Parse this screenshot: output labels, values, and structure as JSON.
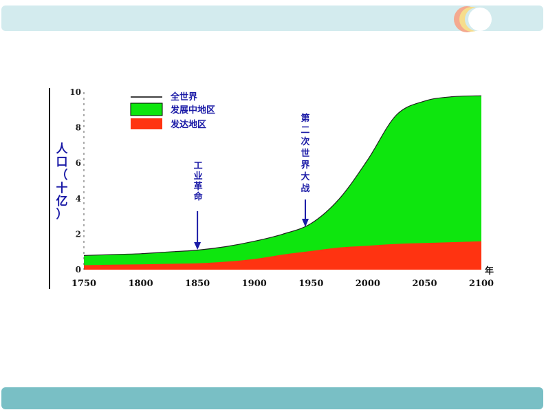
{
  "theme": {
    "top_bar_color": "#d3ebee",
    "bottom_bar_color": "#79bfc5",
    "deco_colors": [
      "#f4a98f",
      "#f6dd8c",
      "#ffffff"
    ]
  },
  "chart_data": {
    "type": "area",
    "title": "",
    "xlabel": "年",
    "ylabel": "人口（十亿）",
    "xlim": [
      1750,
      2100
    ],
    "ylim": [
      0,
      10
    ],
    "x_ticks": [
      "1750",
      "1800",
      "1850",
      "1900",
      "1950",
      "2000",
      "2050",
      "2100"
    ],
    "y_ticks": [
      "0",
      "2",
      "4",
      "6",
      "8",
      "10"
    ],
    "legend_position": "top-left",
    "x": [
      1750,
      1775,
      1800,
      1825,
      1850,
      1875,
      1900,
      1925,
      1950,
      1975,
      2000,
      2025,
      2050,
      2075,
      2100
    ],
    "series": [
      {
        "name": "全世界",
        "kind": "line",
        "color": "#000000",
        "values": [
          0.8,
          0.85,
          0.9,
          1.0,
          1.1,
          1.3,
          1.6,
          2.0,
          2.6,
          4.0,
          6.2,
          8.7,
          9.5,
          9.75,
          9.8
        ]
      },
      {
        "name": "发展中地区",
        "kind": "filled-area",
        "color": "#0ee60e",
        "values": [
          0.8,
          0.85,
          0.9,
          1.0,
          1.1,
          1.3,
          1.6,
          2.0,
          2.6,
          4.0,
          6.2,
          8.7,
          9.5,
          9.75,
          9.8
        ]
      },
      {
        "name": "发达地区",
        "kind": "filled-area",
        "color": "#ff3311",
        "values": [
          0.25,
          0.28,
          0.3,
          0.33,
          0.36,
          0.45,
          0.6,
          0.85,
          1.05,
          1.25,
          1.35,
          1.45,
          1.5,
          1.55,
          1.6
        ]
      }
    ],
    "annotations": [
      {
        "text": "工业革命",
        "x": 1850,
        "y": 1.1
      },
      {
        "text": "第二次世界大战",
        "x": 1945,
        "y": 2.4
      }
    ]
  }
}
